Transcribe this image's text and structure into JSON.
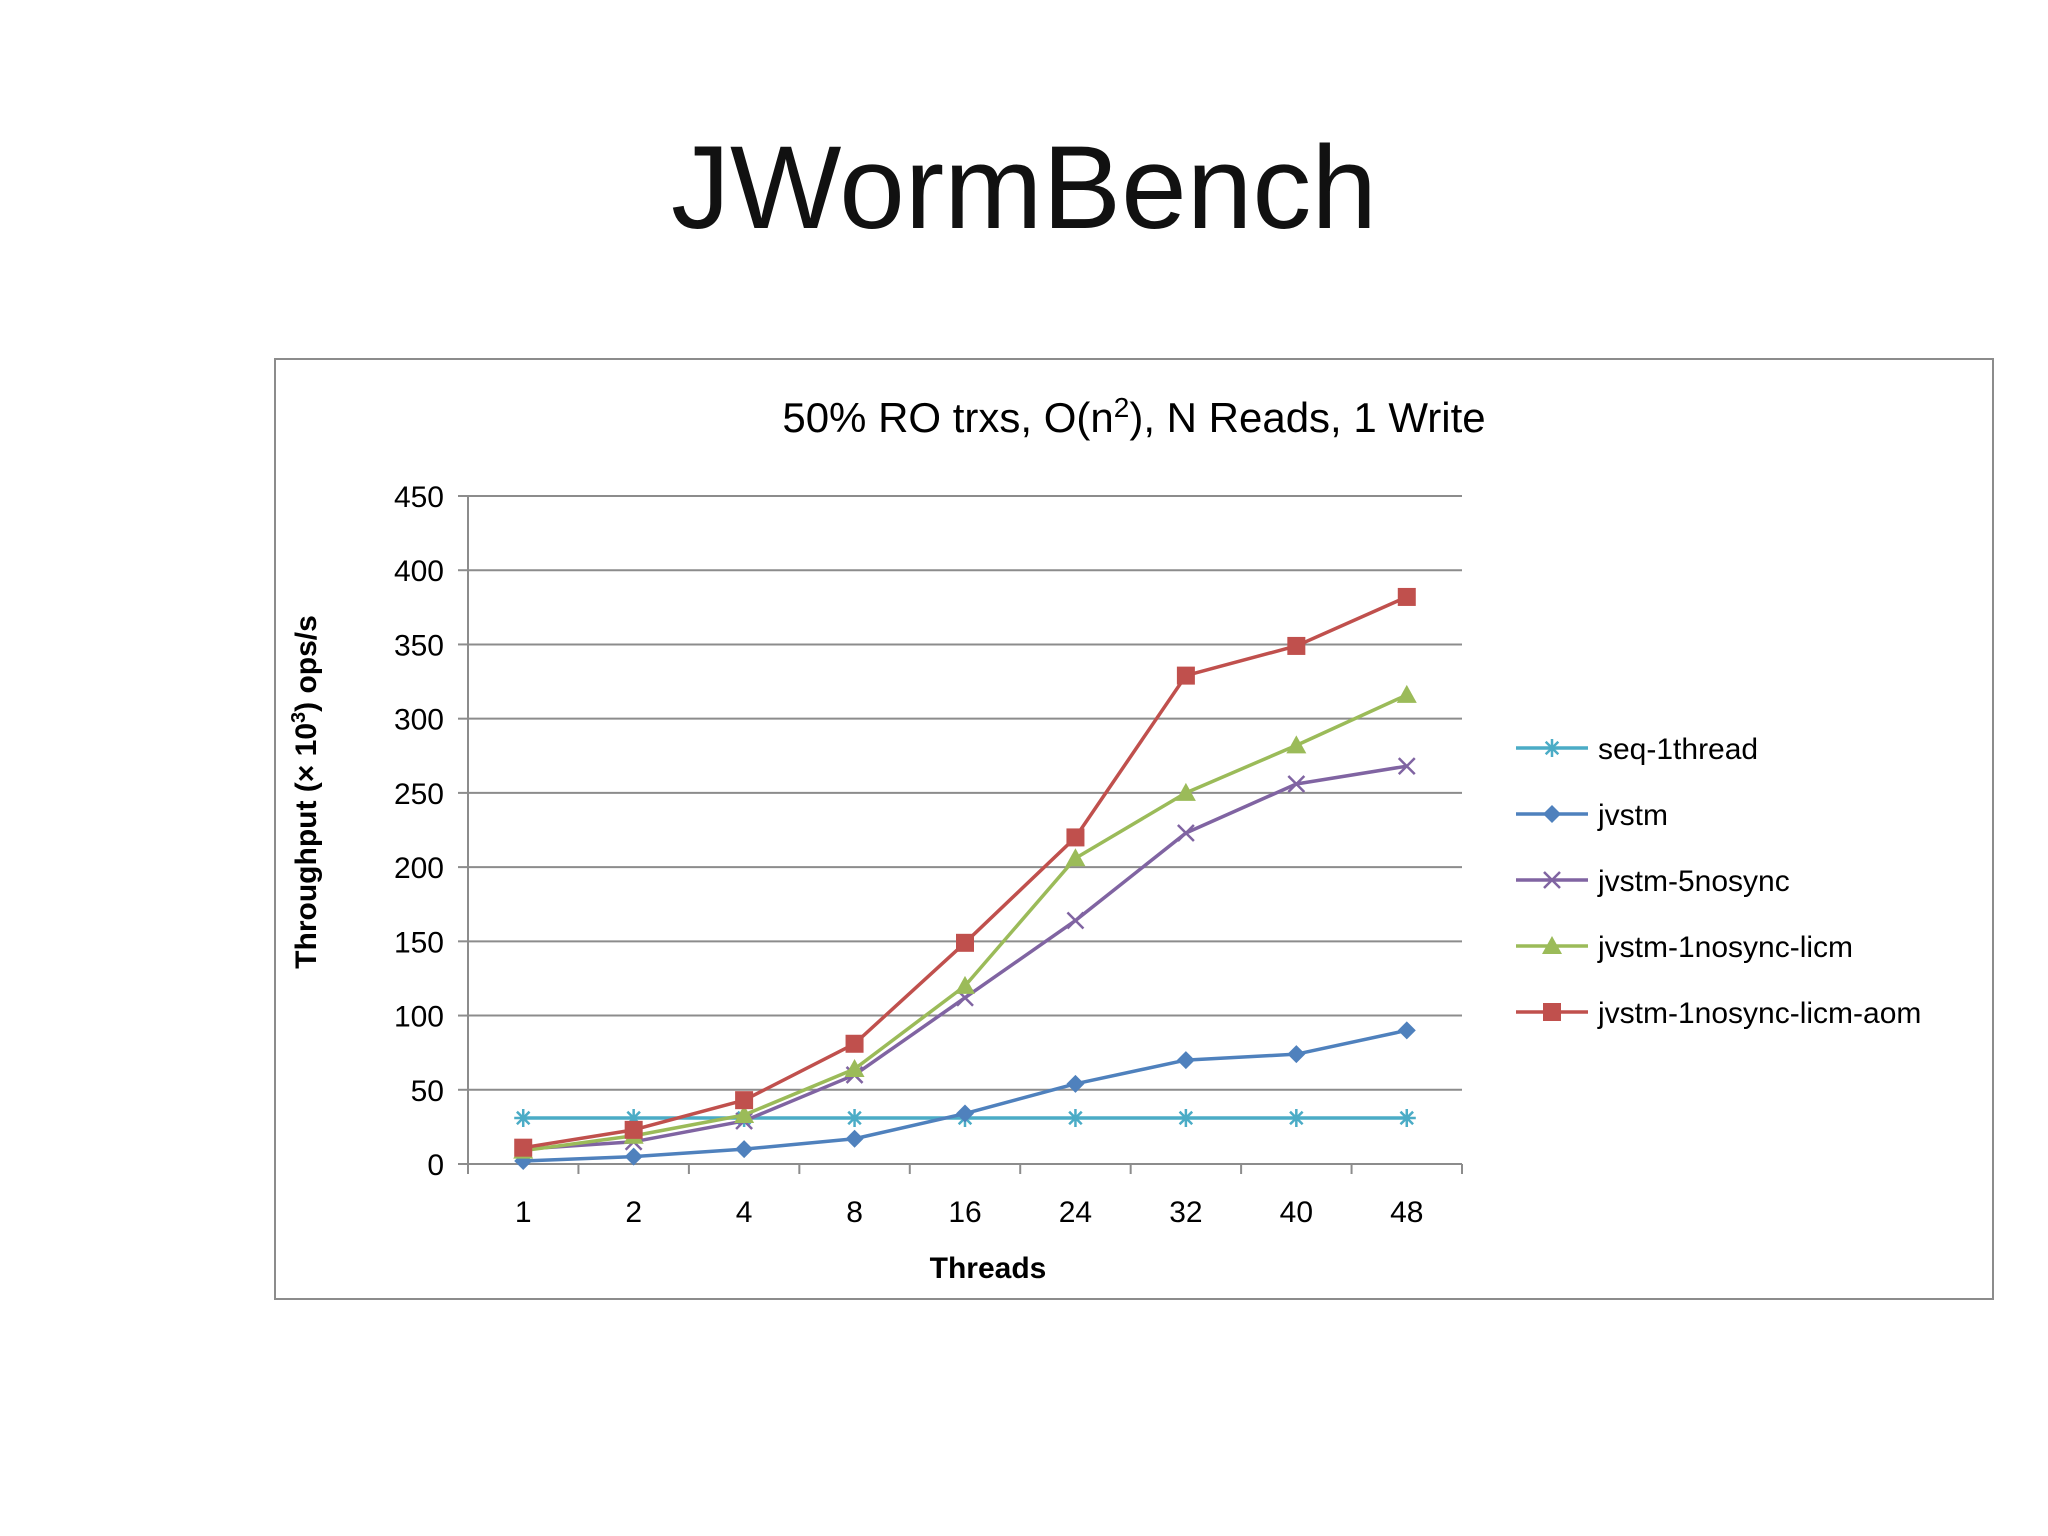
{
  "slide": {
    "title": "JWormBench"
  },
  "colors": {
    "grid": "#8c8c8c",
    "axis": "#8c8c8c",
    "text": "#000000"
  },
  "chart_data": {
    "type": "line",
    "title_main": "50% RO trxs, O(n",
    "title_sup": "2",
    "title_rest": "), N Reads, 1 Write",
    "xlabel": "Threads",
    "ylabel_main": "Throughput (× 10",
    "ylabel_sup": "3",
    "ylabel_rest": ") ops/s",
    "categories": [
      "1",
      "2",
      "4",
      "8",
      "16",
      "24",
      "32",
      "40",
      "48"
    ],
    "ylim": [
      0,
      450
    ],
    "yticks": [
      0,
      50,
      100,
      150,
      200,
      250,
      300,
      350,
      400,
      450
    ],
    "grid": true,
    "legend_position": "right",
    "series": [
      {
        "name": "seq-1thread",
        "color": "#4bacc6",
        "marker": "star",
        "values": [
          31,
          31,
          31,
          31,
          31,
          31,
          31,
          31,
          31
        ]
      },
      {
        "name": "jvstm",
        "color": "#4f81bd",
        "marker": "diamond",
        "values": [
          2,
          5,
          10,
          17,
          34,
          54,
          70,
          74,
          90
        ]
      },
      {
        "name": "jvstm-5nosync",
        "color": "#8064a2",
        "marker": "x",
        "values": [
          10,
          15,
          29,
          60,
          112,
          164,
          223,
          256,
          268
        ]
      },
      {
        "name": "jvstm-1nosync-licm",
        "color": "#9bbb59",
        "marker": "triangle",
        "values": [
          9,
          19,
          33,
          64,
          120,
          206,
          250,
          282,
          316
        ]
      },
      {
        "name": "jvstm-1nosync-licm-aom",
        "color": "#c0504d",
        "marker": "square",
        "values": [
          11,
          23,
          43,
          81,
          149,
          220,
          329,
          349,
          382
        ]
      }
    ]
  }
}
